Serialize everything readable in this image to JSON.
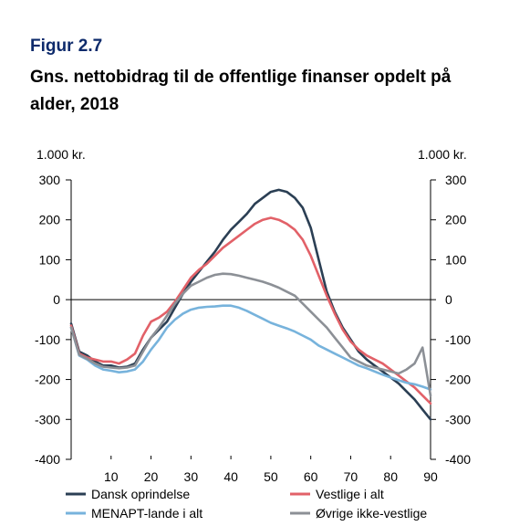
{
  "figure": {
    "label": "Figur 2.7",
    "title": "Gns. nettobidrag til de offentlige finanser opdelt på alder, 2018"
  },
  "chart_data": {
    "type": "line",
    "title": "Gns. nettobidrag til de offentlige finanser opdelt på alder, 2018",
    "xlabel": "",
    "ylabel_left": "1.000 kr.",
    "ylabel_right": "1.000 kr.",
    "xlim": [
      0,
      90
    ],
    "ylim": [
      -400,
      300
    ],
    "x_ticks": [
      10,
      20,
      30,
      40,
      50,
      60,
      70,
      80,
      90
    ],
    "y_ticks": [
      300,
      200,
      100,
      0,
      -100,
      -200,
      -300,
      -400
    ],
    "legend_position": "bottom",
    "grid": false,
    "x": [
      0,
      2,
      4,
      6,
      8,
      10,
      12,
      14,
      16,
      18,
      20,
      22,
      24,
      26,
      28,
      30,
      32,
      34,
      36,
      38,
      40,
      42,
      44,
      46,
      48,
      50,
      52,
      54,
      56,
      58,
      60,
      62,
      64,
      66,
      68,
      70,
      72,
      74,
      76,
      78,
      80,
      82,
      84,
      86,
      88,
      90
    ],
    "series": [
      {
        "name": "Dansk oprindelse",
        "color": "#2b3f54",
        "values": [
          -60,
          -130,
          -140,
          -155,
          -165,
          -165,
          -170,
          -168,
          -160,
          -125,
          -95,
          -75,
          -55,
          -20,
          15,
          45,
          70,
          95,
          120,
          150,
          175,
          195,
          215,
          240,
          255,
          270,
          275,
          270,
          255,
          230,
          180,
          100,
          20,
          -30,
          -70,
          -100,
          -130,
          -150,
          -165,
          -180,
          -195,
          -210,
          -230,
          -250,
          -275,
          -300
        ]
      },
      {
        "name": "Vestlige i alt",
        "color": "#e26168",
        "values": [
          -65,
          -135,
          -145,
          -150,
          -155,
          -155,
          -160,
          -150,
          -135,
          -90,
          -55,
          -45,
          -30,
          -5,
          25,
          55,
          75,
          90,
          110,
          130,
          145,
          160,
          175,
          190,
          200,
          205,
          200,
          190,
          175,
          150,
          110,
          60,
          10,
          -35,
          -75,
          -105,
          -125,
          -140,
          -150,
          -160,
          -175,
          -190,
          -205,
          -220,
          -240,
          -260
        ]
      },
      {
        "name": "MENAPT-lande i alt",
        "color": "#77b3dc",
        "values": [
          -70,
          -140,
          -150,
          -165,
          -175,
          -178,
          -182,
          -180,
          -175,
          -155,
          -125,
          -100,
          -70,
          -50,
          -35,
          -25,
          -20,
          -18,
          -17,
          -15,
          -15,
          -20,
          -28,
          -38,
          -48,
          -58,
          -65,
          -72,
          -80,
          -90,
          -100,
          -115,
          -125,
          -135,
          -145,
          -155,
          -165,
          -172,
          -180,
          -188,
          -195,
          -202,
          -208,
          -212,
          -218,
          -225
        ]
      },
      {
        "name": "Øvrige ikke-vestlige",
        "color": "#8c9096",
        "values": [
          -70,
          -138,
          -148,
          -160,
          -168,
          -170,
          -172,
          -170,
          -165,
          -130,
          -95,
          -70,
          -40,
          -10,
          15,
          35,
          45,
          55,
          62,
          65,
          64,
          60,
          55,
          50,
          45,
          38,
          30,
          20,
          10,
          -10,
          -30,
          -50,
          -70,
          -95,
          -120,
          -145,
          -155,
          -165,
          -170,
          -175,
          -180,
          -185,
          -175,
          -160,
          -120,
          -240
        ]
      }
    ]
  }
}
